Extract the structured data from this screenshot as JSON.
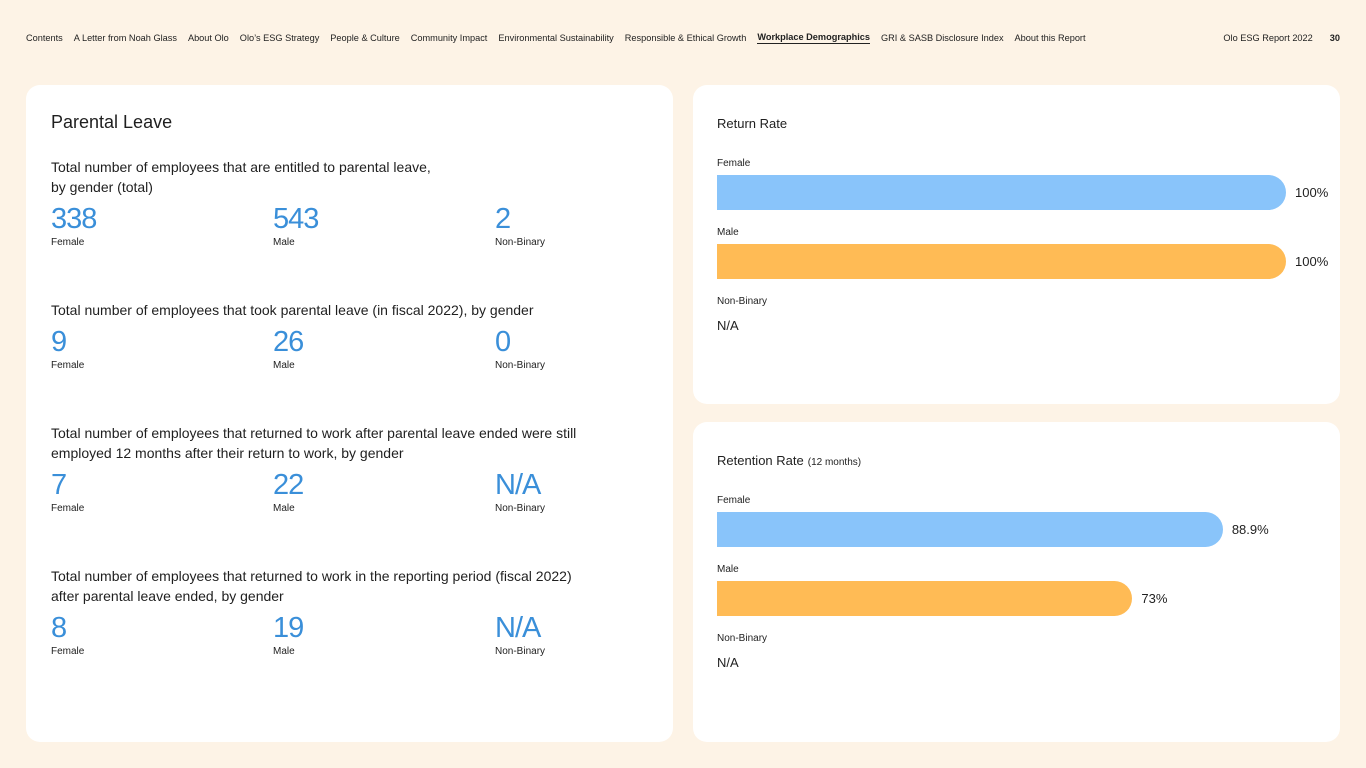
{
  "nav": {
    "items": [
      {
        "label": "Contents",
        "active": false
      },
      {
        "label": "A Letter from Noah Glass",
        "active": false
      },
      {
        "label": "About Olo",
        "active": false
      },
      {
        "label": "Olo’s ESG Strategy",
        "active": false
      },
      {
        "label": "People & Culture",
        "active": false
      },
      {
        "label": "Community Impact",
        "active": false
      },
      {
        "label": "Environmental Sustainability",
        "active": false
      },
      {
        "label": "Responsible & Ethical Growth",
        "active": false
      },
      {
        "label": "Workplace Demographics",
        "active": true
      },
      {
        "label": "GRI & SASB Disclosure Index",
        "active": false
      },
      {
        "label": "About this Report",
        "active": false
      }
    ],
    "report_title": "Olo ESG Report 2022",
    "page_number": "30"
  },
  "parental_leave": {
    "title": "Parental Leave",
    "sections": [
      {
        "label_lines": [
          "Total number of employees that are entitled to parental leave,",
          "by gender (total)"
        ],
        "female": "338",
        "male": "543",
        "non_binary": "2"
      },
      {
        "label_lines": [
          "Total number of employees that took parental leave (in fiscal 2022), by gender"
        ],
        "female": "9",
        "male": "26",
        "non_binary": "0"
      },
      {
        "label_lines": [
          "Total number of employees that returned to work after parental leave ended were still",
          "employed 12 months after their return to work, by gender"
        ],
        "female": "7",
        "male": "22",
        "non_binary": "N/A"
      },
      {
        "label_lines": [
          "Total number of employees that returned to work in the reporting period (fiscal 2022)",
          "after parental leave ended, by gender"
        ],
        "female": "8",
        "male": "19",
        "non_binary": "N/A"
      }
    ],
    "labels": {
      "female": "Female",
      "male": "Male",
      "non_binary": "Non-Binary"
    }
  },
  "chart_data": [
    {
      "type": "bar",
      "title": "Return Rate",
      "categories": [
        "Female",
        "Male",
        "Non-Binary"
      ],
      "values": [
        100,
        100,
        null
      ],
      "value_labels": [
        "100%",
        "100%",
        "N/A"
      ],
      "colors": [
        "#89c4fa",
        "#ffbb55"
      ],
      "xlim": [
        0,
        100
      ]
    },
    {
      "type": "bar",
      "title": "Retention Rate",
      "subtitle": "(12 months)",
      "categories": [
        "Female",
        "Male",
        "Non-Binary"
      ],
      "values": [
        88.9,
        73,
        null
      ],
      "value_labels": [
        "88.9%",
        "73%",
        "N/A"
      ],
      "colors": [
        "#89c4fa",
        "#ffbb55"
      ],
      "xlim": [
        0,
        100
      ]
    }
  ]
}
